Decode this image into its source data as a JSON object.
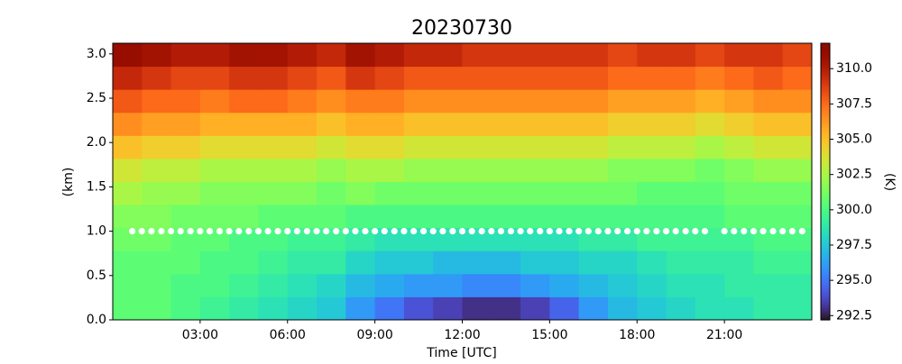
{
  "chart_data": {
    "type": "heatmap",
    "title": "20230730",
    "xlabel": "Time [UTC]",
    "ylabel": "(km)",
    "colorbar_label": "(K)",
    "colormap": "turbo",
    "clim": [
      292.2,
      311.8
    ],
    "xlim": [
      0,
      24
    ],
    "ylim": [
      0,
      3.12
    ],
    "xticks": [
      {
        "value": 3,
        "label": "03:00"
      },
      {
        "value": 6,
        "label": "06:00"
      },
      {
        "value": 9,
        "label": "09:00"
      },
      {
        "value": 12,
        "label": "12:00"
      },
      {
        "value": 15,
        "label": "15:00"
      },
      {
        "value": 18,
        "label": "18:00"
      },
      {
        "value": 21,
        "label": "21:00"
      }
    ],
    "yticks": [
      {
        "value": 0,
        "label": "0.0"
      },
      {
        "value": 0.5,
        "label": "0.5"
      },
      {
        "value": 1,
        "label": "1.0"
      },
      {
        "value": 1.5,
        "label": "1.5"
      },
      {
        "value": 2,
        "label": "2.0"
      },
      {
        "value": 2.5,
        "label": "2.5"
      },
      {
        "value": 3,
        "label": "3.0"
      }
    ],
    "cticks": [
      {
        "value": 292.5,
        "label": "292.5"
      },
      {
        "value": 295,
        "label": "295.0"
      },
      {
        "value": 297.5,
        "label": "297.5"
      },
      {
        "value": 300,
        "label": "300.0"
      },
      {
        "value": 302.5,
        "label": "302.5"
      },
      {
        "value": 305,
        "label": "305.0"
      },
      {
        "value": 307.5,
        "label": "307.5"
      },
      {
        "value": 310,
        "label": "310.0"
      }
    ],
    "x_bins": [
      0,
      1,
      2,
      3,
      4,
      5,
      6,
      7,
      8,
      9,
      10,
      11,
      12,
      13,
      14,
      15,
      16,
      17,
      18,
      19,
      20,
      21,
      22,
      23,
      24
    ],
    "y_bins": [
      0,
      0.26,
      0.52,
      0.78,
      1.04,
      1.3,
      1.56,
      1.82,
      2.08,
      2.34,
      2.6,
      2.86,
      3.12
    ],
    "z": [
      [
        300.5,
        300.5,
        300,
        299.5,
        299,
        298.5,
        298,
        297.5,
        296,
        295,
        294,
        293.5,
        293,
        293,
        293.5,
        294.5,
        296,
        297,
        297.5,
        298,
        298.5,
        298.5,
        299,
        299
      ],
      [
        300.5,
        300.5,
        300,
        300,
        299.5,
        299,
        298.5,
        298,
        297,
        296.5,
        296,
        296,
        295.5,
        295.5,
        296,
        296.5,
        297,
        297.5,
        298,
        298.5,
        298.5,
        299,
        299,
        299
      ],
      [
        300.5,
        300.5,
        300.5,
        300,
        300,
        299.5,
        299,
        299,
        298,
        297.5,
        297.5,
        297,
        297,
        297,
        297.5,
        297.5,
        298,
        298,
        298.5,
        299,
        299,
        299,
        299.5,
        299.5
      ],
      [
        301,
        301,
        300.5,
        300.5,
        300,
        300,
        299.5,
        299.5,
        299,
        298.5,
        298.5,
        298.5,
        298.5,
        298.5,
        298.5,
        298.5,
        299,
        299,
        299.5,
        299.5,
        299.5,
        299.5,
        300,
        300
      ],
      [
        301.5,
        301.5,
        301,
        301,
        301,
        300.5,
        300.5,
        300.5,
        300,
        300,
        300,
        300,
        300,
        300,
        300,
        300,
        300,
        300,
        300,
        300,
        300,
        300.5,
        300.5,
        300.5
      ],
      [
        302.5,
        302,
        302,
        301.5,
        301.5,
        301.5,
        301.5,
        301,
        301.5,
        301,
        301,
        301,
        301,
        301,
        301,
        301,
        301,
        301,
        300.5,
        300.5,
        300.5,
        301,
        301,
        301
      ],
      [
        303.5,
        303,
        303,
        302.5,
        302.5,
        302.5,
        302.5,
        302,
        302.5,
        302.5,
        302,
        302,
        302,
        302,
        302,
        302,
        302,
        301.5,
        301.5,
        301.5,
        301,
        301.5,
        302,
        302
      ],
      [
        305,
        304.5,
        304.5,
        304,
        304,
        304,
        304,
        303.5,
        304,
        304,
        303.5,
        303.5,
        303.5,
        303.5,
        303.5,
        303.5,
        303.5,
        303,
        303,
        303,
        302.5,
        303,
        303.5,
        303.5
      ],
      [
        306.5,
        306,
        306,
        305.5,
        305.5,
        305.5,
        305.5,
        305,
        305.5,
        305.5,
        305,
        305,
        305,
        305,
        305,
        305,
        305,
        304.5,
        304.5,
        304.5,
        304,
        304.5,
        305,
        305
      ],
      [
        308,
        307.5,
        307.5,
        307,
        307.5,
        307.5,
        307,
        306.5,
        307,
        307,
        306.5,
        306.5,
        306.5,
        306.5,
        306.5,
        306.5,
        306.5,
        306,
        306,
        306,
        305.5,
        306,
        306.5,
        306.5
      ],
      [
        309.5,
        309,
        308.5,
        308.5,
        309,
        309,
        308.5,
        308,
        309,
        308.5,
        308,
        308,
        308,
        308,
        308,
        308,
        308,
        307.5,
        307.5,
        307.5,
        307,
        307.5,
        308,
        307.5
      ],
      [
        311,
        310.5,
        310,
        310,
        310.5,
        310.5,
        310,
        309.5,
        310.5,
        310,
        309.5,
        309.5,
        309,
        309,
        309,
        309,
        309,
        308.5,
        309,
        309,
        308.5,
        309,
        309,
        308.5
      ]
    ],
    "markers": {
      "color": "#ffffff",
      "x": [
        0.67,
        1,
        1.33,
        1.67,
        2,
        2.33,
        2.67,
        3,
        3.33,
        3.67,
        4,
        4.33,
        4.67,
        5,
        5.33,
        5.67,
        6,
        6.33,
        6.67,
        7,
        7.33,
        7.67,
        8,
        8.33,
        8.67,
        9,
        9.33,
        9.67,
        10,
        10.33,
        10.67,
        11,
        11.33,
        11.67,
        12,
        12.33,
        12.67,
        13,
        13.33,
        13.67,
        14,
        14.33,
        14.67,
        15,
        15.33,
        15.67,
        16,
        16.33,
        16.67,
        17,
        17.33,
        17.67,
        18,
        18.33,
        18.67,
        19,
        19.33,
        19.67,
        20,
        20.33,
        21,
        21.33,
        21.67,
        22,
        22.33,
        22.67,
        23,
        23.33,
        23.67
      ],
      "y": [
        1,
        1,
        1,
        1,
        1,
        1,
        1,
        1,
        1,
        1,
        1,
        1,
        1,
        1,
        1,
        1,
        1,
        1,
        1,
        1,
        1,
        1,
        1,
        1,
        1,
        1,
        1,
        1,
        1,
        1,
        1,
        1,
        1,
        1,
        1,
        1,
        1,
        1,
        1,
        1,
        1,
        1,
        1,
        1,
        1,
        1,
        1,
        1,
        1,
        1,
        1,
        1,
        1,
        1,
        1,
        1,
        1,
        1,
        1,
        1,
        1,
        1,
        1,
        1,
        1,
        1,
        1,
        1,
        1
      ]
    }
  }
}
